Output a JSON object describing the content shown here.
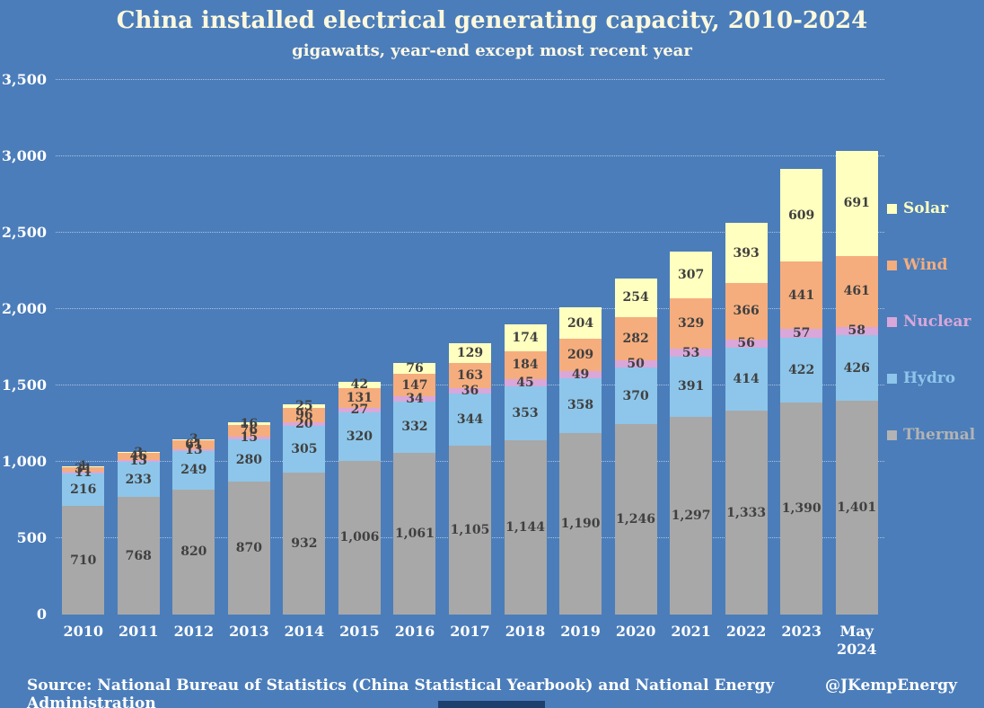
{
  "title": "China installed electrical generating capacity, 2010-2024",
  "subtitle": "gigawatts, year-end except most recent year",
  "footer": {
    "source": "Source: National Bureau of Statistics (China Statistical Yearbook) and National Energy Administration",
    "credit": "@JKempEnergy"
  },
  "colors": {
    "background": "#4b7dba",
    "title_text": "#fcf8dd",
    "axis_text": "#ffffff",
    "segment_label_text": "#404040",
    "grid": "rgba(255,255,255,0.55)"
  },
  "chart_data": {
    "type": "bar",
    "stacked": true,
    "title": "China installed electrical generating capacity, 2010-2024",
    "subtitle": "gigawatts, year-end except most recent year",
    "xlabel": "",
    "ylabel": "gigawatts",
    "ylim": [
      0,
      3500
    ],
    "grid": "dotted horizontal gridlines",
    "legend_position": "right",
    "categories": [
      "2010",
      "2011",
      "2012",
      "2013",
      "2014",
      "2015",
      "2016",
      "2017",
      "2018",
      "2019",
      "2020",
      "2021",
      "2022",
      "2023",
      "May\n2024"
    ],
    "series": [
      {
        "name": "Thermal",
        "color": "#a8a8a8",
        "values": [
          710,
          768,
          820,
          870,
          932,
          1006,
          1061,
          1105,
          1144,
          1190,
          1246,
          1297,
          1333,
          1390,
          1401
        ]
      },
      {
        "name": "Hydro",
        "color": "#8dc6ea",
        "values": [
          216,
          233,
          249,
          280,
          305,
          320,
          332,
          344,
          353,
          358,
          370,
          391,
          414,
          422,
          426
        ]
      },
      {
        "name": "Nuclear",
        "color": "#d9a7d9",
        "values": [
          11,
          13,
          13,
          15,
          20,
          27,
          34,
          36,
          45,
          49,
          50,
          53,
          56,
          57,
          58
        ]
      },
      {
        "name": "Wind",
        "color": "#f5ad7d",
        "values": [
          31,
          46,
          61,
          76,
          96,
          131,
          147,
          163,
          184,
          209,
          282,
          329,
          366,
          441,
          461
        ]
      },
      {
        "name": "Solar",
        "color": "#ffffbf",
        "values": [
          1,
          3,
          3,
          16,
          25,
          42,
          76,
          129,
          174,
          204,
          254,
          307,
          393,
          609,
          691
        ]
      }
    ],
    "ytick_values": [
      0,
      500,
      1000,
      1500,
      2000,
      2500,
      3000,
      3500
    ],
    "yticks": [
      "0",
      "500",
      "1,000",
      "1,500",
      "2,000",
      "2,500",
      "3,000",
      "3,500"
    ],
    "legend_items": [
      {
        "label": "Solar",
        "color": "#ffffbf"
      },
      {
        "label": "Wind",
        "color": "#f5ad7d"
      },
      {
        "label": "Nuclear",
        "color": "#d9a7d9"
      },
      {
        "label": "Hydro",
        "color": "#8dc6ea"
      },
      {
        "label": "Thermal",
        "color": "#b3b3b3"
      }
    ]
  }
}
